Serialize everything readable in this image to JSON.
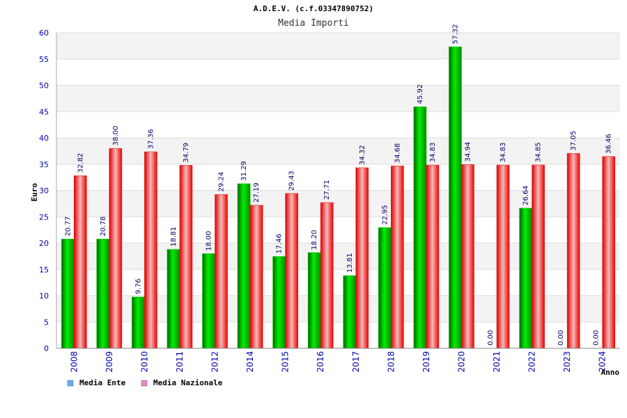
{
  "chart_data": {
    "type": "bar",
    "title": "A.D.E.V. (c.f.03347890752)",
    "subtitle": "Media Importi",
    "ylabel": "Euro",
    "xlabel": "Anno",
    "ylim": [
      0,
      60
    ],
    "yticks": [
      "0",
      "5",
      "10",
      "15",
      "20",
      "25",
      "30",
      "35",
      "40",
      "45",
      "50",
      "55",
      "60"
    ],
    "grid": true,
    "legend_position": "bottom-left",
    "categories": [
      "2008",
      "2009",
      "2010",
      "2011",
      "2012",
      "2014",
      "2015",
      "2016",
      "2017",
      "2018",
      "2019",
      "2020",
      "2021",
      "2022",
      "2023",
      "2024"
    ],
    "series": [
      {
        "name": "Media Ente",
        "color": "#00c000",
        "legend_color": "#66aaff",
        "values": [
          20.77,
          20.78,
          9.76,
          18.81,
          18.0,
          31.29,
          17.46,
          18.2,
          13.81,
          22.95,
          45.92,
          57.32,
          0.0,
          26.64,
          0.0,
          0.0
        ],
        "labels": [
          "20.77",
          "20.78",
          "9.76",
          "18.81",
          "18.00",
          "31.29",
          "17.46",
          "18.20",
          "13.81",
          "22.95",
          "45.92",
          "57.32",
          "0.00",
          "26.64",
          "0.00",
          "0.00"
        ]
      },
      {
        "name": "Media Nazionale",
        "color": "#ee1111",
        "legend_color": "#ee88cc",
        "values": [
          32.82,
          38.0,
          37.36,
          34.79,
          29.24,
          27.19,
          29.43,
          27.71,
          34.32,
          34.68,
          34.83,
          34.94,
          34.83,
          34.85,
          37.05,
          36.46
        ],
        "labels": [
          "32.82",
          "38.00",
          "37.36",
          "34.79",
          "29.24",
          "27.19",
          "29.43",
          "27.71",
          "34.32",
          "34.68",
          "34.83",
          "34.94",
          "34.83",
          "34.85",
          "37.05",
          "36.46"
        ]
      }
    ]
  }
}
